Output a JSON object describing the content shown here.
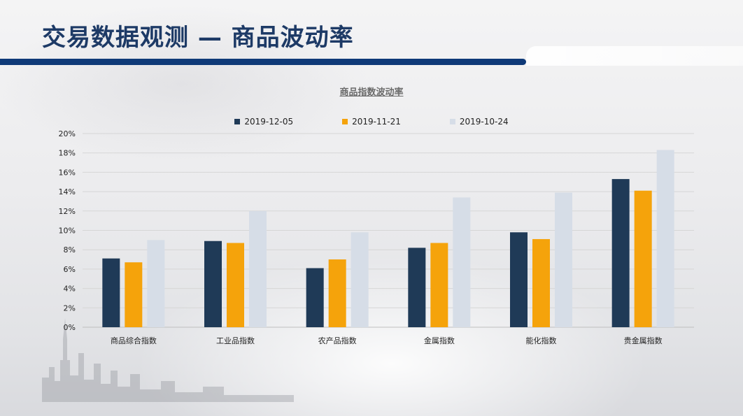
{
  "page": {
    "title": "交易数据观测 — 商品波动率"
  },
  "chart_data": {
    "type": "bar",
    "title": "商品指数波动率",
    "categories": [
      "商品综合指数",
      "工业品指数",
      "农产品指数",
      "金属指数",
      "能化指数",
      "贵金属指数"
    ],
    "series": [
      {
        "name": "2019-12-05",
        "color": "#1f3a57",
        "values": [
          7.1,
          8.9,
          6.1,
          8.2,
          9.8,
          15.3
        ]
      },
      {
        "name": "2019-11-21",
        "color": "#f5a30b",
        "values": [
          6.7,
          8.7,
          7.0,
          8.7,
          9.1,
          14.1
        ]
      },
      {
        "name": "2019-10-24",
        "color": "#d6dde7",
        "values": [
          9.0,
          12.0,
          9.8,
          13.4,
          13.9,
          18.3
        ]
      }
    ],
    "ylim": [
      0,
      20
    ],
    "yticks": [
      "0%",
      "2%",
      "4%",
      "6%",
      "8%",
      "10%",
      "12%",
      "14%",
      "16%",
      "18%",
      "20%"
    ],
    "grid": true,
    "legend": "top-center",
    "xlabel": "",
    "ylabel": ""
  }
}
